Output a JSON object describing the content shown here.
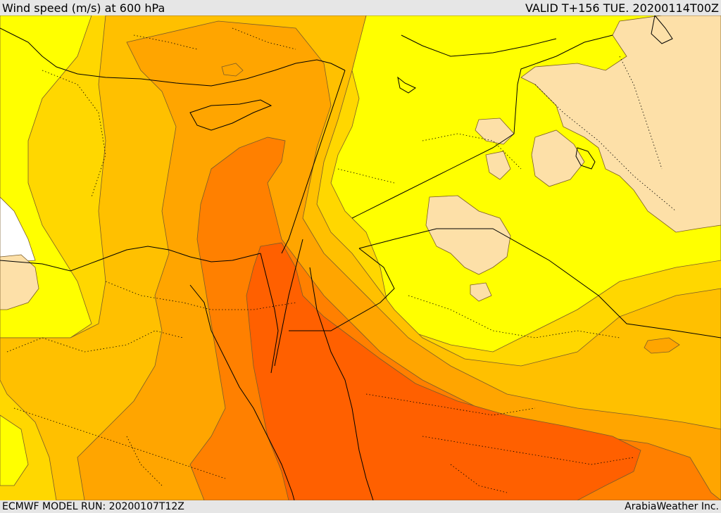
{
  "header": {
    "title": "Wind speed (m/s) at 600 hPa",
    "valid": "VALID T+156 TUE. 20200114T00Z"
  },
  "footer": {
    "model_run": "ECMWF MODEL RUN: 20200107T12Z",
    "credit": "ArabiaWeather Inc."
  },
  "palette": {
    "background": "#e6e6e6",
    "no_data": "#ffffff",
    "level_1": "#fde0a8",
    "level_2": "#ffff00",
    "level_3": "#ffd700",
    "level_4": "#ffc000",
    "level_5": "#ffa500",
    "level_6": "#ff8000",
    "level_7": "#ff6000",
    "contour_line": "#7a5c2a",
    "coast_line": "#000000"
  }
}
